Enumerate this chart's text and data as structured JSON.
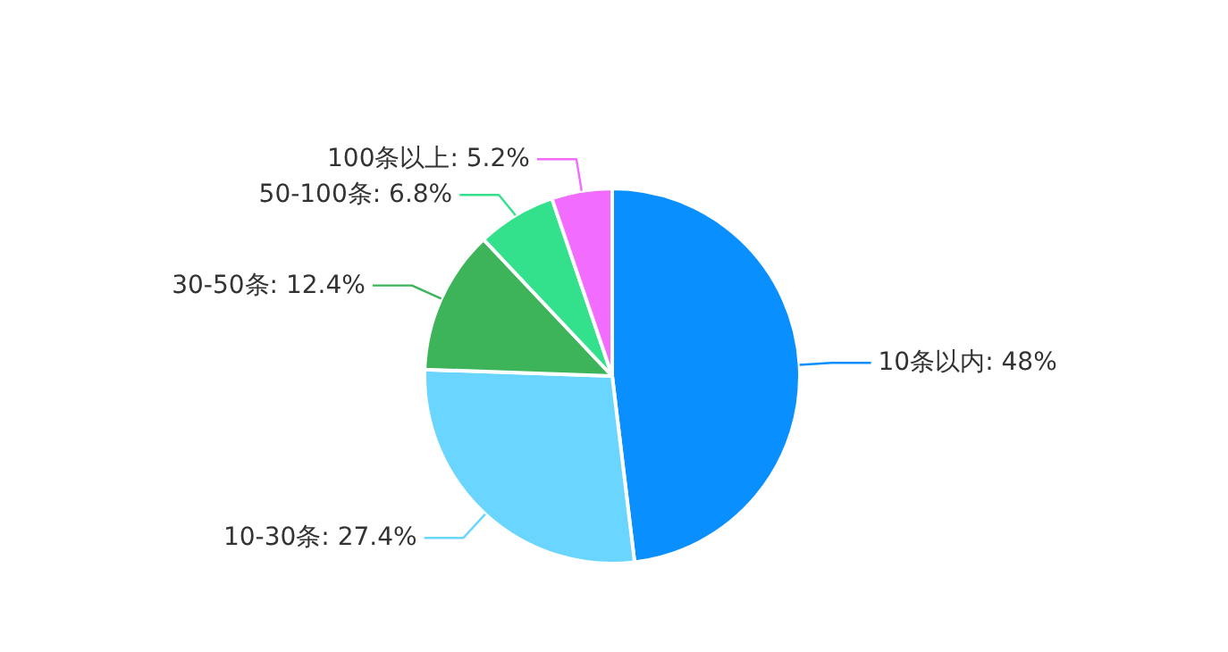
{
  "chart_data": {
    "type": "pie",
    "categories": [
      "10条以内",
      "10-30条",
      "30-50条",
      "50-100条",
      "100条以上"
    ],
    "values": [
      48,
      27.4,
      12.4,
      6.8,
      5.2
    ],
    "value_labels": [
      "48%",
      "27.4%",
      "12.4%",
      "6.8%",
      "5.2%"
    ],
    "colors": [
      "#0a8fff",
      "#6ad6ff",
      "#3db35a",
      "#33e08c",
      "#f26cff"
    ]
  }
}
